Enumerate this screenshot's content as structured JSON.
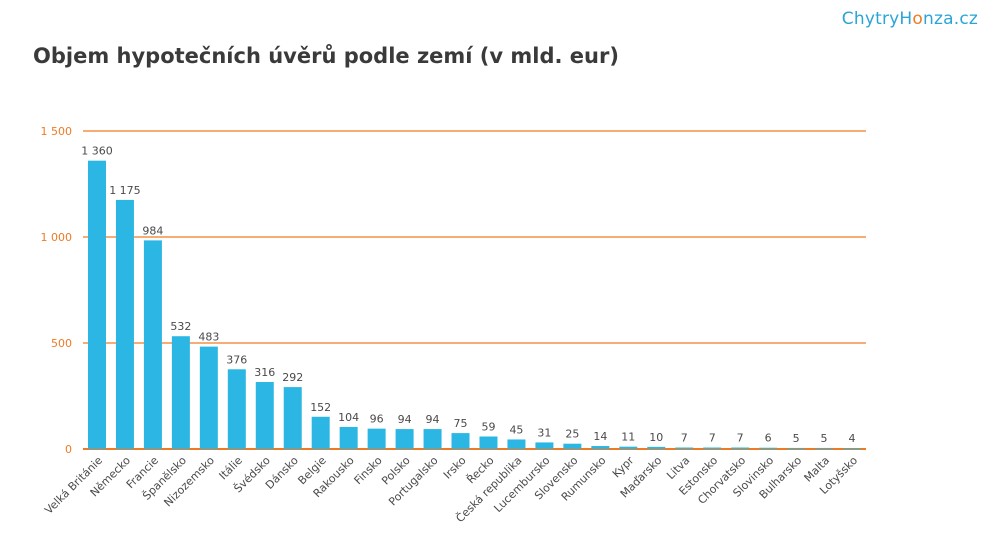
{
  "brand": {
    "prefix": "ChytryH",
    "accent_char": "o",
    "suffix": "nza.cz",
    "color": "#2aa5d6",
    "accent_color": "#f07a22"
  },
  "title": "Objem hypotečních úvěrů podle zemí (v mld. eur)",
  "chart_data": {
    "type": "bar",
    "title": "Objem hypotečních úvěrů podle zemí (v mld. eur)",
    "xlabel": "",
    "ylabel": "",
    "ylim": [
      0,
      1500
    ],
    "yticks": [
      0,
      500,
      1000,
      1500
    ],
    "ytick_labels": [
      "0",
      "500",
      "1 000",
      "1 500"
    ],
    "grid": true,
    "bar_color": "#2cb6e3",
    "grid_color": "#f07a22",
    "categories": [
      "Velká Británie",
      "Německo",
      "Francie",
      "Španělsko",
      "Nizozemsko",
      "Itálie",
      "Švédsko",
      "Dánsko",
      "Belgie",
      "Rakousko",
      "Finsko",
      "Polsko",
      "Portugalsko",
      "Irsko",
      "Řecko",
      "Česká republika",
      "Lucembursko",
      "Slovensko",
      "Rumunsko",
      "Kypr",
      "Maďarsko",
      "Litva",
      "Estonsko",
      "Chorvatsko",
      "Slovinsko",
      "Bulharsko",
      "Malta",
      "Lotyšsko"
    ],
    "values": [
      1360,
      1175,
      984,
      532,
      483,
      376,
      316,
      292,
      152,
      104,
      96,
      94,
      94,
      75,
      59,
      45,
      31,
      25,
      14,
      11,
      10,
      7,
      7,
      7,
      6,
      5,
      5,
      4
    ],
    "value_labels": [
      "1 360",
      "1 175",
      "984",
      "532",
      "483",
      "376",
      "316",
      "292",
      "152",
      "104",
      "96",
      "94",
      "94",
      "75",
      "59",
      "45",
      "31",
      "25",
      "14",
      "11",
      "10",
      "7",
      "7",
      "7",
      "6",
      "5",
      "5",
      "4"
    ]
  }
}
